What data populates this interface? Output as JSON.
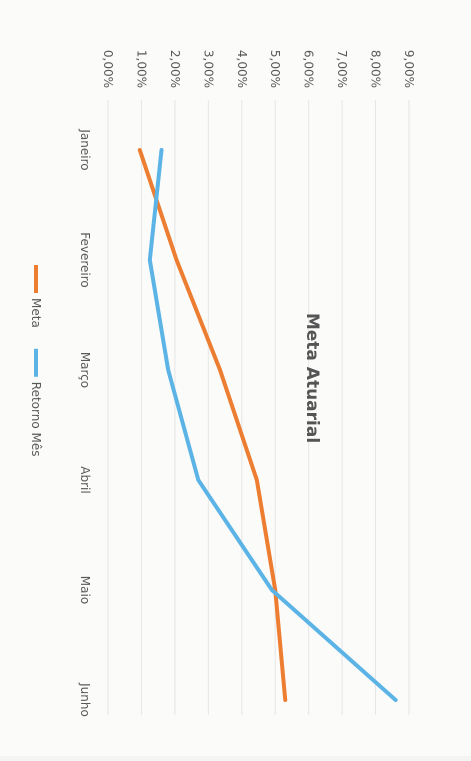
{
  "chart_data": {
    "type": "line",
    "title": "Meta Atuarial",
    "xlabel": "",
    "ylabel": "",
    "categories": [
      "Janeiro",
      "Fevereiro",
      "Março",
      "Abril",
      "Maio",
      "Junho"
    ],
    "yticks": [
      "0,00%",
      "1,00%",
      "2,00%",
      "3,00%",
      "4,00%",
      "5,00%",
      "6,00%",
      "7,00%",
      "8,00%",
      "9,00%"
    ],
    "ylim": [
      0,
      9
    ],
    "grid": true,
    "legend_position": "bottom",
    "orientation": "rotated 90 degrees clockwise",
    "series": [
      {
        "name": "Meta",
        "color": "#ED7D31",
        "values": [
          0.95,
          2.05,
          3.35,
          4.45,
          5.0,
          5.3
        ]
      },
      {
        "name": "Retorno Mês",
        "color": "#5BB4E5",
        "values": [
          1.6,
          1.25,
          1.8,
          2.7,
          4.9,
          8.6
        ]
      }
    ]
  }
}
